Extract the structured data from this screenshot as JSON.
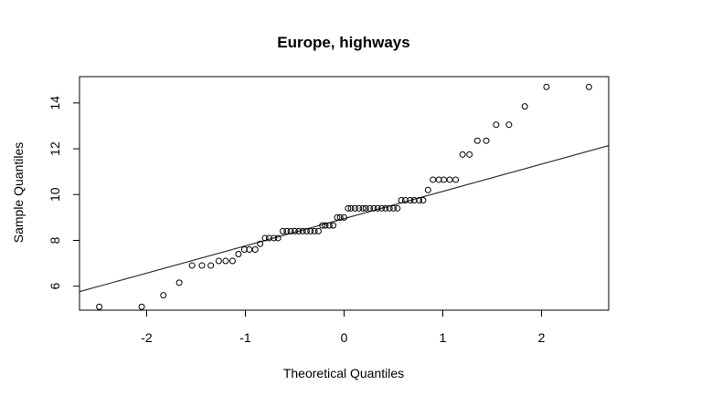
{
  "chart_data": {
    "type": "scatter",
    "title": "Europe, highways",
    "xlabel": "Theoretical Quantiles",
    "ylabel": "Sample Quantiles",
    "xlim": [
      -2.68,
      2.68
    ],
    "ylim": [
      4.95,
      15.15
    ],
    "x_ticks": [
      -2,
      -1,
      0,
      1,
      2
    ],
    "y_ticks": [
      6,
      8,
      10,
      12,
      14
    ],
    "grid": false,
    "legend": "none",
    "point_style": "open-circle",
    "reference_line": {
      "intercept": 8.95,
      "slope": 1.19
    },
    "points": [
      [
        -2.48,
        5.1
      ],
      [
        -2.05,
        5.1
      ],
      [
        -1.83,
        5.6
      ],
      [
        -1.67,
        6.15
      ],
      [
        -1.54,
        6.9
      ],
      [
        -1.44,
        6.9
      ],
      [
        -1.35,
        6.9
      ],
      [
        -1.27,
        7.1
      ],
      [
        -1.2,
        7.1
      ],
      [
        -1.13,
        7.1
      ],
      [
        -1.07,
        7.4
      ],
      [
        -1.01,
        7.6
      ],
      [
        -0.96,
        7.6
      ],
      [
        -0.9,
        7.6
      ],
      [
        -0.85,
        7.85
      ],
      [
        -0.8,
        8.1
      ],
      [
        -0.76,
        8.1
      ],
      [
        -0.71,
        8.1
      ],
      [
        -0.67,
        8.1
      ],
      [
        -0.62,
        8.4
      ],
      [
        -0.58,
        8.4
      ],
      [
        -0.54,
        8.4
      ],
      [
        -0.5,
        8.4
      ],
      [
        -0.46,
        8.4
      ],
      [
        -0.42,
        8.4
      ],
      [
        -0.38,
        8.4
      ],
      [
        -0.34,
        8.4
      ],
      [
        -0.3,
        8.4
      ],
      [
        -0.26,
        8.4
      ],
      [
        -0.22,
        8.65
      ],
      [
        -0.19,
        8.65
      ],
      [
        -0.15,
        8.65
      ],
      [
        -0.11,
        8.65
      ],
      [
        -0.07,
        9.0
      ],
      [
        -0.04,
        9.0
      ],
      [
        0.0,
        9.0
      ],
      [
        0.04,
        9.4
      ],
      [
        0.07,
        9.4
      ],
      [
        0.11,
        9.4
      ],
      [
        0.15,
        9.4
      ],
      [
        0.19,
        9.4
      ],
      [
        0.22,
        9.4
      ],
      [
        0.26,
        9.4
      ],
      [
        0.3,
        9.4
      ],
      [
        0.34,
        9.4
      ],
      [
        0.38,
        9.4
      ],
      [
        0.42,
        9.4
      ],
      [
        0.46,
        9.4
      ],
      [
        0.5,
        9.4
      ],
      [
        0.54,
        9.4
      ],
      [
        0.58,
        9.75
      ],
      [
        0.62,
        9.75
      ],
      [
        0.67,
        9.75
      ],
      [
        0.71,
        9.75
      ],
      [
        0.76,
        9.75
      ],
      [
        0.8,
        9.75
      ],
      [
        0.85,
        10.2
      ],
      [
        0.9,
        10.65
      ],
      [
        0.96,
        10.65
      ],
      [
        1.01,
        10.65
      ],
      [
        1.07,
        10.65
      ],
      [
        1.13,
        10.65
      ],
      [
        1.2,
        11.75
      ],
      [
        1.27,
        11.75
      ],
      [
        1.35,
        12.35
      ],
      [
        1.44,
        12.35
      ],
      [
        1.54,
        13.05
      ],
      [
        1.67,
        13.05
      ],
      [
        1.83,
        13.85
      ],
      [
        2.05,
        14.7
      ],
      [
        2.48,
        14.7
      ]
    ]
  }
}
